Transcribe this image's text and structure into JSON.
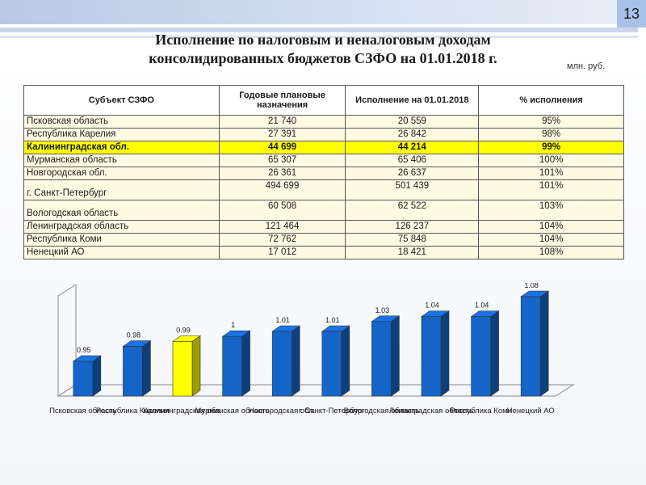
{
  "slide": {
    "page_number": "13",
    "units": "млн. руб."
  },
  "title": {
    "line1": "Исполнение по налоговым и неналоговым доходам",
    "line2": "консолидированных бюджетов СЗФО на 01.01.2018 г."
  },
  "table": {
    "headers": [
      "Субъект СЗФО",
      "Годовые плановые назначения",
      "Исполнение на 01.01.2018",
      "% исполнения"
    ],
    "rows": [
      {
        "name": "Псковская область",
        "plan": "21 740",
        "actual": "20 559",
        "pct": "95%"
      },
      {
        "name": "Республика Карелия",
        "plan": "27 391",
        "actual": "26 842",
        "pct": "98%"
      },
      {
        "name": "Калининградская обл.",
        "plan": "44 699",
        "actual": "44 214",
        "pct": "99%"
      },
      {
        "name": "Мурманская область",
        "plan": "65 307",
        "actual": "65 406",
        "pct": "100%"
      },
      {
        "name": "Новгородская обл.",
        "plan": "26 361",
        "actual": "26 637",
        "pct": "101%"
      },
      {
        "name": "г. Санкт-Петербург",
        "plan": "494 699",
        "actual": "501 439",
        "pct": "101%"
      },
      {
        "name": "Вологодская область",
        "plan": "60 508",
        "actual": "62 522",
        "pct": "103%"
      },
      {
        "name": "Ленинградская область",
        "plan": "121 464",
        "actual": "126 237",
        "pct": "104%"
      },
      {
        "name": "Республика Коми",
        "plan": "72 762",
        "actual": "75 848",
        "pct": "104%"
      },
      {
        "name": "Ненецкий АО",
        "plan": "17 012",
        "actual": "18 421",
        "pct": "108%"
      }
    ]
  },
  "chart_data": {
    "type": "bar",
    "categories": [
      "Псковская область",
      "Республика Карелия",
      "Калининградская обл.",
      "Мурманская область",
      "Новгородская обл.",
      "г. Санкт-Петербург",
      "Вологодская область",
      "Ленинградская область",
      "Республика Коми",
      "Ненецкий АО"
    ],
    "values": [
      0.95,
      0.98,
      0.99,
      1,
      1.01,
      1.01,
      1.03,
      1.04,
      1.04,
      1.08
    ],
    "value_labels": [
      "0.95",
      "0.98",
      "0.99",
      "1",
      "1.01",
      "1.01",
      "1.03",
      "1.04",
      "1.04",
      "1.08"
    ],
    "highlight_index": 2,
    "colors": {
      "bar": "#1565c8",
      "highlight": "#ffff00"
    },
    "grid": false,
    "legend": "none",
    "title": "",
    "xlabel": "",
    "ylabel": ""
  }
}
